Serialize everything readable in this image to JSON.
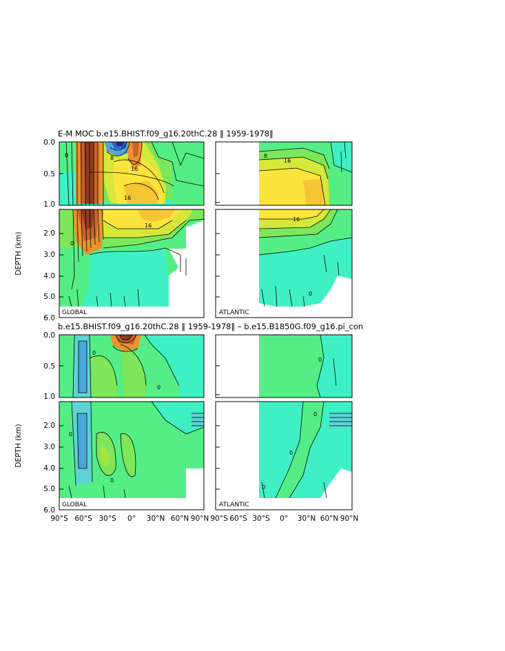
{
  "colors": {
    "scale": [
      "#1a2a8f",
      "#2f5fc4",
      "#4aa6d8",
      "#5fd3d3",
      "#3ff0c4",
      "#55ee86",
      "#7de65a",
      "#a8e63c",
      "#d6e83a",
      "#fbe43c",
      "#f6c533",
      "#e9932e",
      "#c9622d",
      "#8f3b22",
      "#5a2412"
    ]
  },
  "chart_data": [
    {
      "type": "contour",
      "panel": "top",
      "title": "E-M MOC   b.e15.BHIST.f09_g16.20thC.28  ‖ 1959-1978‖",
      "ylabel": "DEPTH (km)",
      "ylim": [
        0.0,
        6.0
      ],
      "y_ticks_upper": [
        "0.0",
        "0.5",
        "1.0"
      ],
      "y_ticks_lower": [
        "2.0",
        "3.0",
        "4.0",
        "5.0",
        "6.0"
      ],
      "regions": [
        {
          "name": "GLOBAL",
          "xlim": [
            -90,
            90
          ]
        },
        {
          "name": "ATLANTIC",
          "xlim": [
            -90,
            90
          ],
          "data_start_lat": -30
        }
      ],
      "contour_labels": [
        "0",
        "8",
        "16",
        "16",
        "16",
        "16",
        "16",
        "8",
        "0",
        "0"
      ],
      "estimated_peak_sv": 24
    },
    {
      "type": "contour",
      "panel": "bottom",
      "title": "b.e15.BHIST.f09_g16.20thC.28  ‖ 1959-1978‖  –  b.e15.B1850G.f09_g16.pi_con",
      "ylabel": "DEPTH (km)",
      "ylim": [
        0.0,
        6.0
      ],
      "y_ticks_upper": [
        "0.0",
        "0.5",
        "1.0"
      ],
      "y_ticks_lower": [
        "2.0",
        "3.0",
        "4.0",
        "5.0",
        "6.0"
      ],
      "regions": [
        {
          "name": "GLOBAL",
          "xlim": [
            -90,
            90
          ]
        },
        {
          "name": "ATLANTIC",
          "xlim": [
            -90,
            90
          ],
          "data_start_lat": -30
        }
      ],
      "contour_labels": [
        "0",
        "0",
        "0",
        "0",
        "0",
        "0",
        "0",
        "0"
      ]
    }
  ],
  "xaxis": {
    "ticks": [
      "90°S",
      "60°S",
      "30°S",
      "0°",
      "30°N",
      "60°N",
      "90°N"
    ],
    "values": [
      -90,
      -60,
      -30,
      0,
      30,
      60,
      90
    ]
  }
}
